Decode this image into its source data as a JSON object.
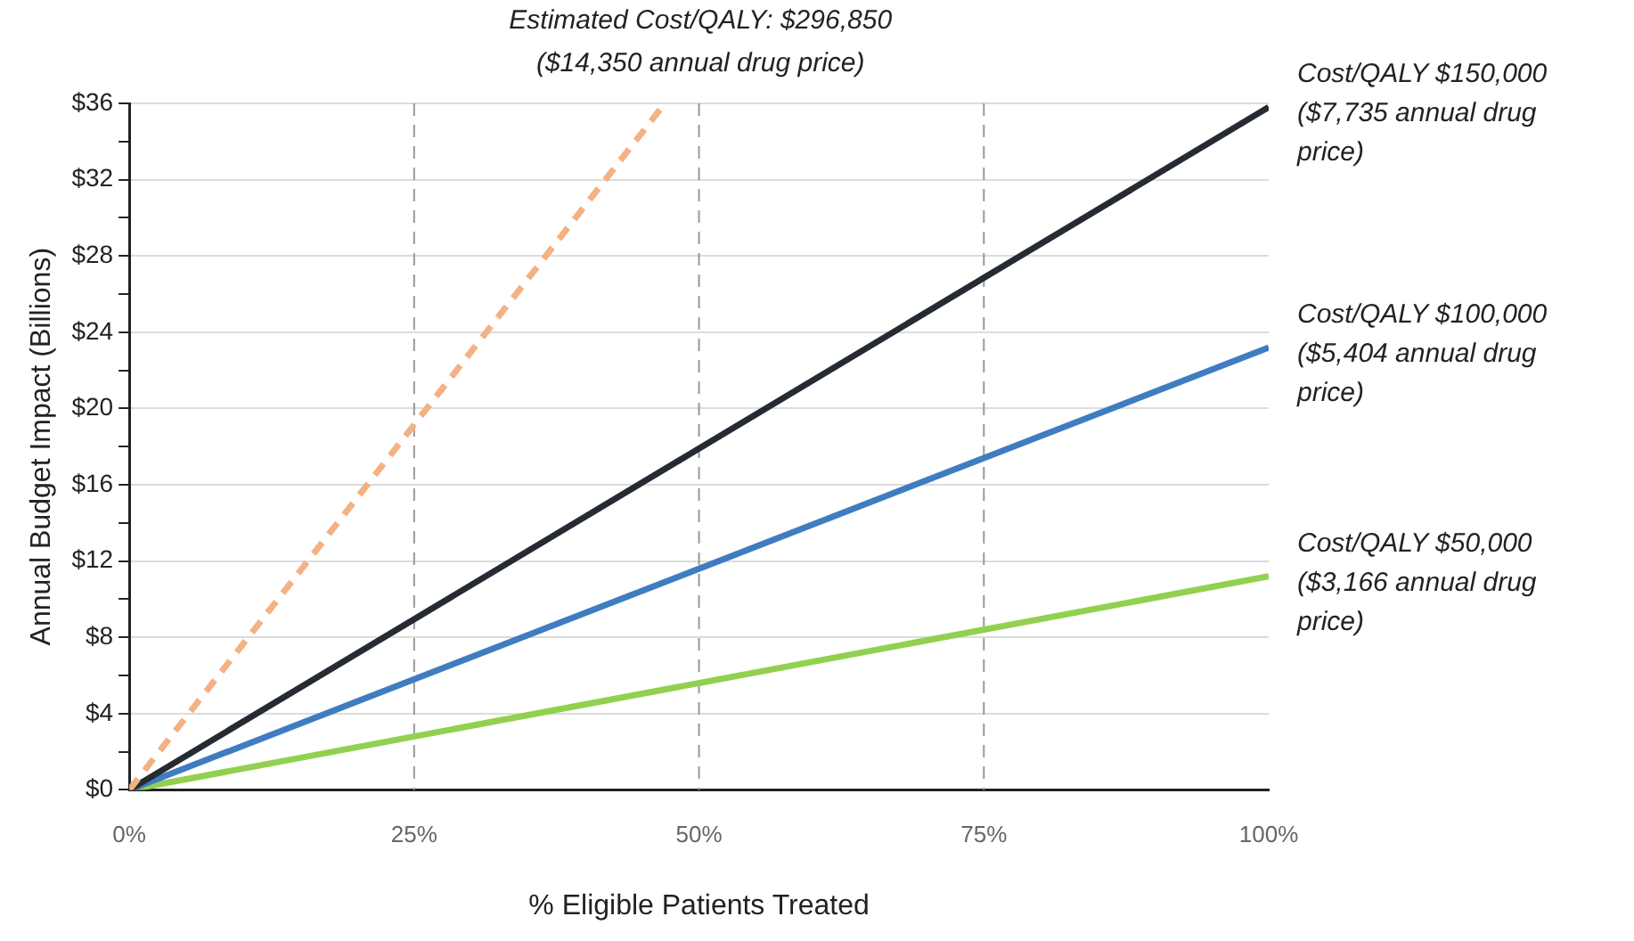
{
  "chart_data": {
    "type": "line",
    "xlabel": "% Eligible Patients Treated",
    "ylabel": "Annual Budget Impact (Billions)",
    "x": [
      0,
      100
    ],
    "xlim": [
      0,
      100
    ],
    "xticks": [
      {
        "value": 0,
        "label": "0%"
      },
      {
        "value": 25,
        "label": "25%"
      },
      {
        "value": 50,
        "label": "50%"
      },
      {
        "value": 75,
        "label": "75%"
      },
      {
        "value": 100,
        "label": "100%"
      }
    ],
    "ylim": [
      0,
      36
    ],
    "yticks": [
      {
        "value": 0,
        "label": "$0"
      },
      {
        "value": 2,
        "label": null
      },
      {
        "value": 4,
        "label": "$4"
      },
      {
        "value": 6,
        "label": null
      },
      {
        "value": 8,
        "label": "$8"
      },
      {
        "value": 10,
        "label": null
      },
      {
        "value": 12,
        "label": "$12"
      },
      {
        "value": 14,
        "label": null
      },
      {
        "value": 16,
        "label": "$16"
      },
      {
        "value": 18,
        "label": null
      },
      {
        "value": 20,
        "label": "$20"
      },
      {
        "value": 22,
        "label": null
      },
      {
        "value": 24,
        "label": "$24"
      },
      {
        "value": 26,
        "label": null
      },
      {
        "value": 28,
        "label": "$28"
      },
      {
        "value": 30,
        "label": null
      },
      {
        "value": 32,
        "label": "$32"
      },
      {
        "value": 34,
        "label": null
      },
      {
        "value": 36,
        "label": "$36"
      }
    ],
    "grid": true,
    "legend": false,
    "marker": "none",
    "series": [
      {
        "name": "Estimated Cost/QALY: $296,850\n($14,350 annual drug price)",
        "color": "#f4b183",
        "x": [
          0,
          47
        ],
        "values": [
          0,
          36
        ],
        "line_style": "dashed"
      },
      {
        "name": "Cost/QALY $150,000\n($7,735 annual drug\nprice)",
        "color": "#262b33",
        "values": [
          0,
          35.8
        ]
      },
      {
        "name": "Cost/QALY $100,000\n($5,404 annual drug\nprice)",
        "color": "#3f7cc0",
        "values": [
          0,
          23.2
        ]
      },
      {
        "name": "Cost/QALY $50,000\n($3,166 annual drug\nprice)",
        "color": "#92d050",
        "values": [
          0,
          11.2
        ]
      }
    ]
  }
}
